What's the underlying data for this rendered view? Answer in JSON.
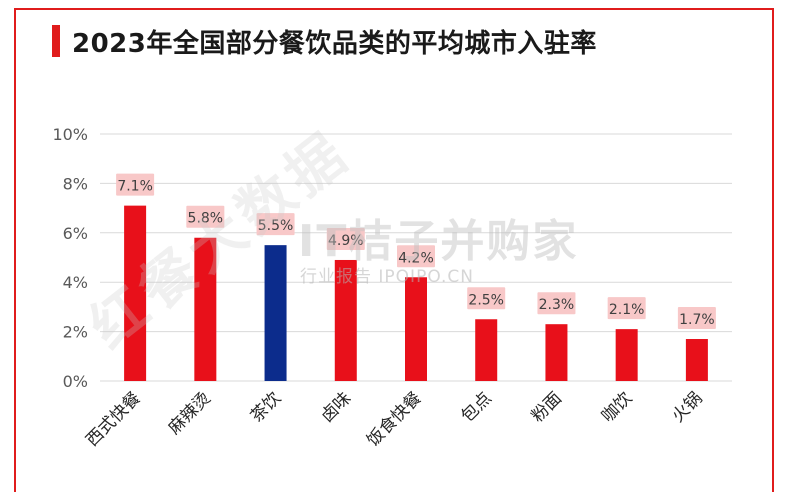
{
  "title": "2023年全国部分餐饮品类的平均城市入驻率",
  "watermark": {
    "main": "IT桔子并购家",
    "sub": "行业报告 IPOIPO.CN",
    "diagonal": "红餐大数据"
  },
  "colors": {
    "accent": "#e01c1c",
    "bar_default": "#e8101a",
    "bar_highlight": "#0c2c8c",
    "label_bg": "#f8c8c8",
    "grid": "#d9d9d9",
    "axis_text": "#595959"
  },
  "chart_data": {
    "type": "bar",
    "title": "2023年全国部分餐饮品类的平均城市入驻率",
    "xlabel": "",
    "ylabel": "",
    "categories": [
      "西式快餐",
      "麻辣烫",
      "茶饮",
      "卤味",
      "饭食快餐",
      "包点",
      "粉面",
      "咖饮",
      "火锅"
    ],
    "values": [
      7.1,
      5.8,
      5.5,
      4.9,
      4.2,
      2.5,
      2.3,
      2.1,
      1.7
    ],
    "data_labels": [
      "7.1%",
      "5.8%",
      "5.5%",
      "4.9%",
      "4.2%",
      "2.5%",
      "2.3%",
      "2.1%",
      "1.7%"
    ],
    "highlight_index": 2,
    "ylim": [
      0,
      10
    ],
    "yticks": [
      0,
      2,
      4,
      6,
      8,
      10
    ],
    "ytick_labels": [
      "0%",
      "2%",
      "4%",
      "6%",
      "8%",
      "10%"
    ],
    "grid": true,
    "legend": "none"
  }
}
